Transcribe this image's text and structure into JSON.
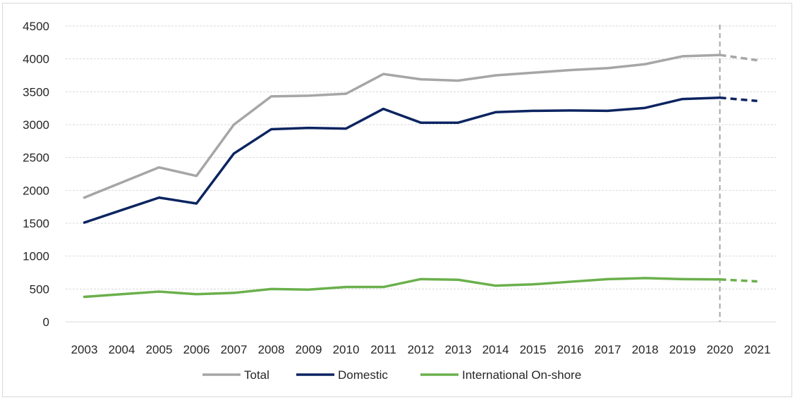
{
  "chart_data": {
    "type": "line",
    "categories": [
      "2003",
      "2004",
      "2005",
      "2006",
      "2007",
      "2008",
      "2009",
      "2010",
      "2011",
      "2012",
      "2013",
      "2014",
      "2015",
      "2016",
      "2017",
      "2018",
      "2019",
      "2020",
      "2021"
    ],
    "ylim": [
      0,
      4500
    ],
    "yticks": [
      0,
      500,
      1000,
      1500,
      2000,
      2500,
      3000,
      3500,
      4000,
      4500
    ],
    "grid": true,
    "forecast_from_index": 17,
    "legend_position": "bottom",
    "series": [
      {
        "name": "Total",
        "color": "#a6a6a6",
        "values": [
          1890,
          2120,
          2350,
          2220,
          3000,
          3430,
          3440,
          3470,
          3770,
          3690,
          3670,
          3750,
          3790,
          3830,
          3860,
          3920,
          4040,
          4060,
          3980
        ]
      },
      {
        "name": "Domestic",
        "color": "#0c2461",
        "values": [
          1510,
          1700,
          1890,
          1800,
          2560,
          2930,
          2950,
          2940,
          3240,
          3030,
          3030,
          3190,
          3210,
          3215,
          3210,
          3255,
          3390,
          3410,
          3360
        ]
      },
      {
        "name": "International On-shore",
        "color": "#6ab04c",
        "values": [
          380,
          420,
          460,
          420,
          440,
          500,
          490,
          530,
          530,
          650,
          640,
          550,
          570,
          610,
          650,
          665,
          650,
          645,
          615
        ]
      }
    ]
  }
}
